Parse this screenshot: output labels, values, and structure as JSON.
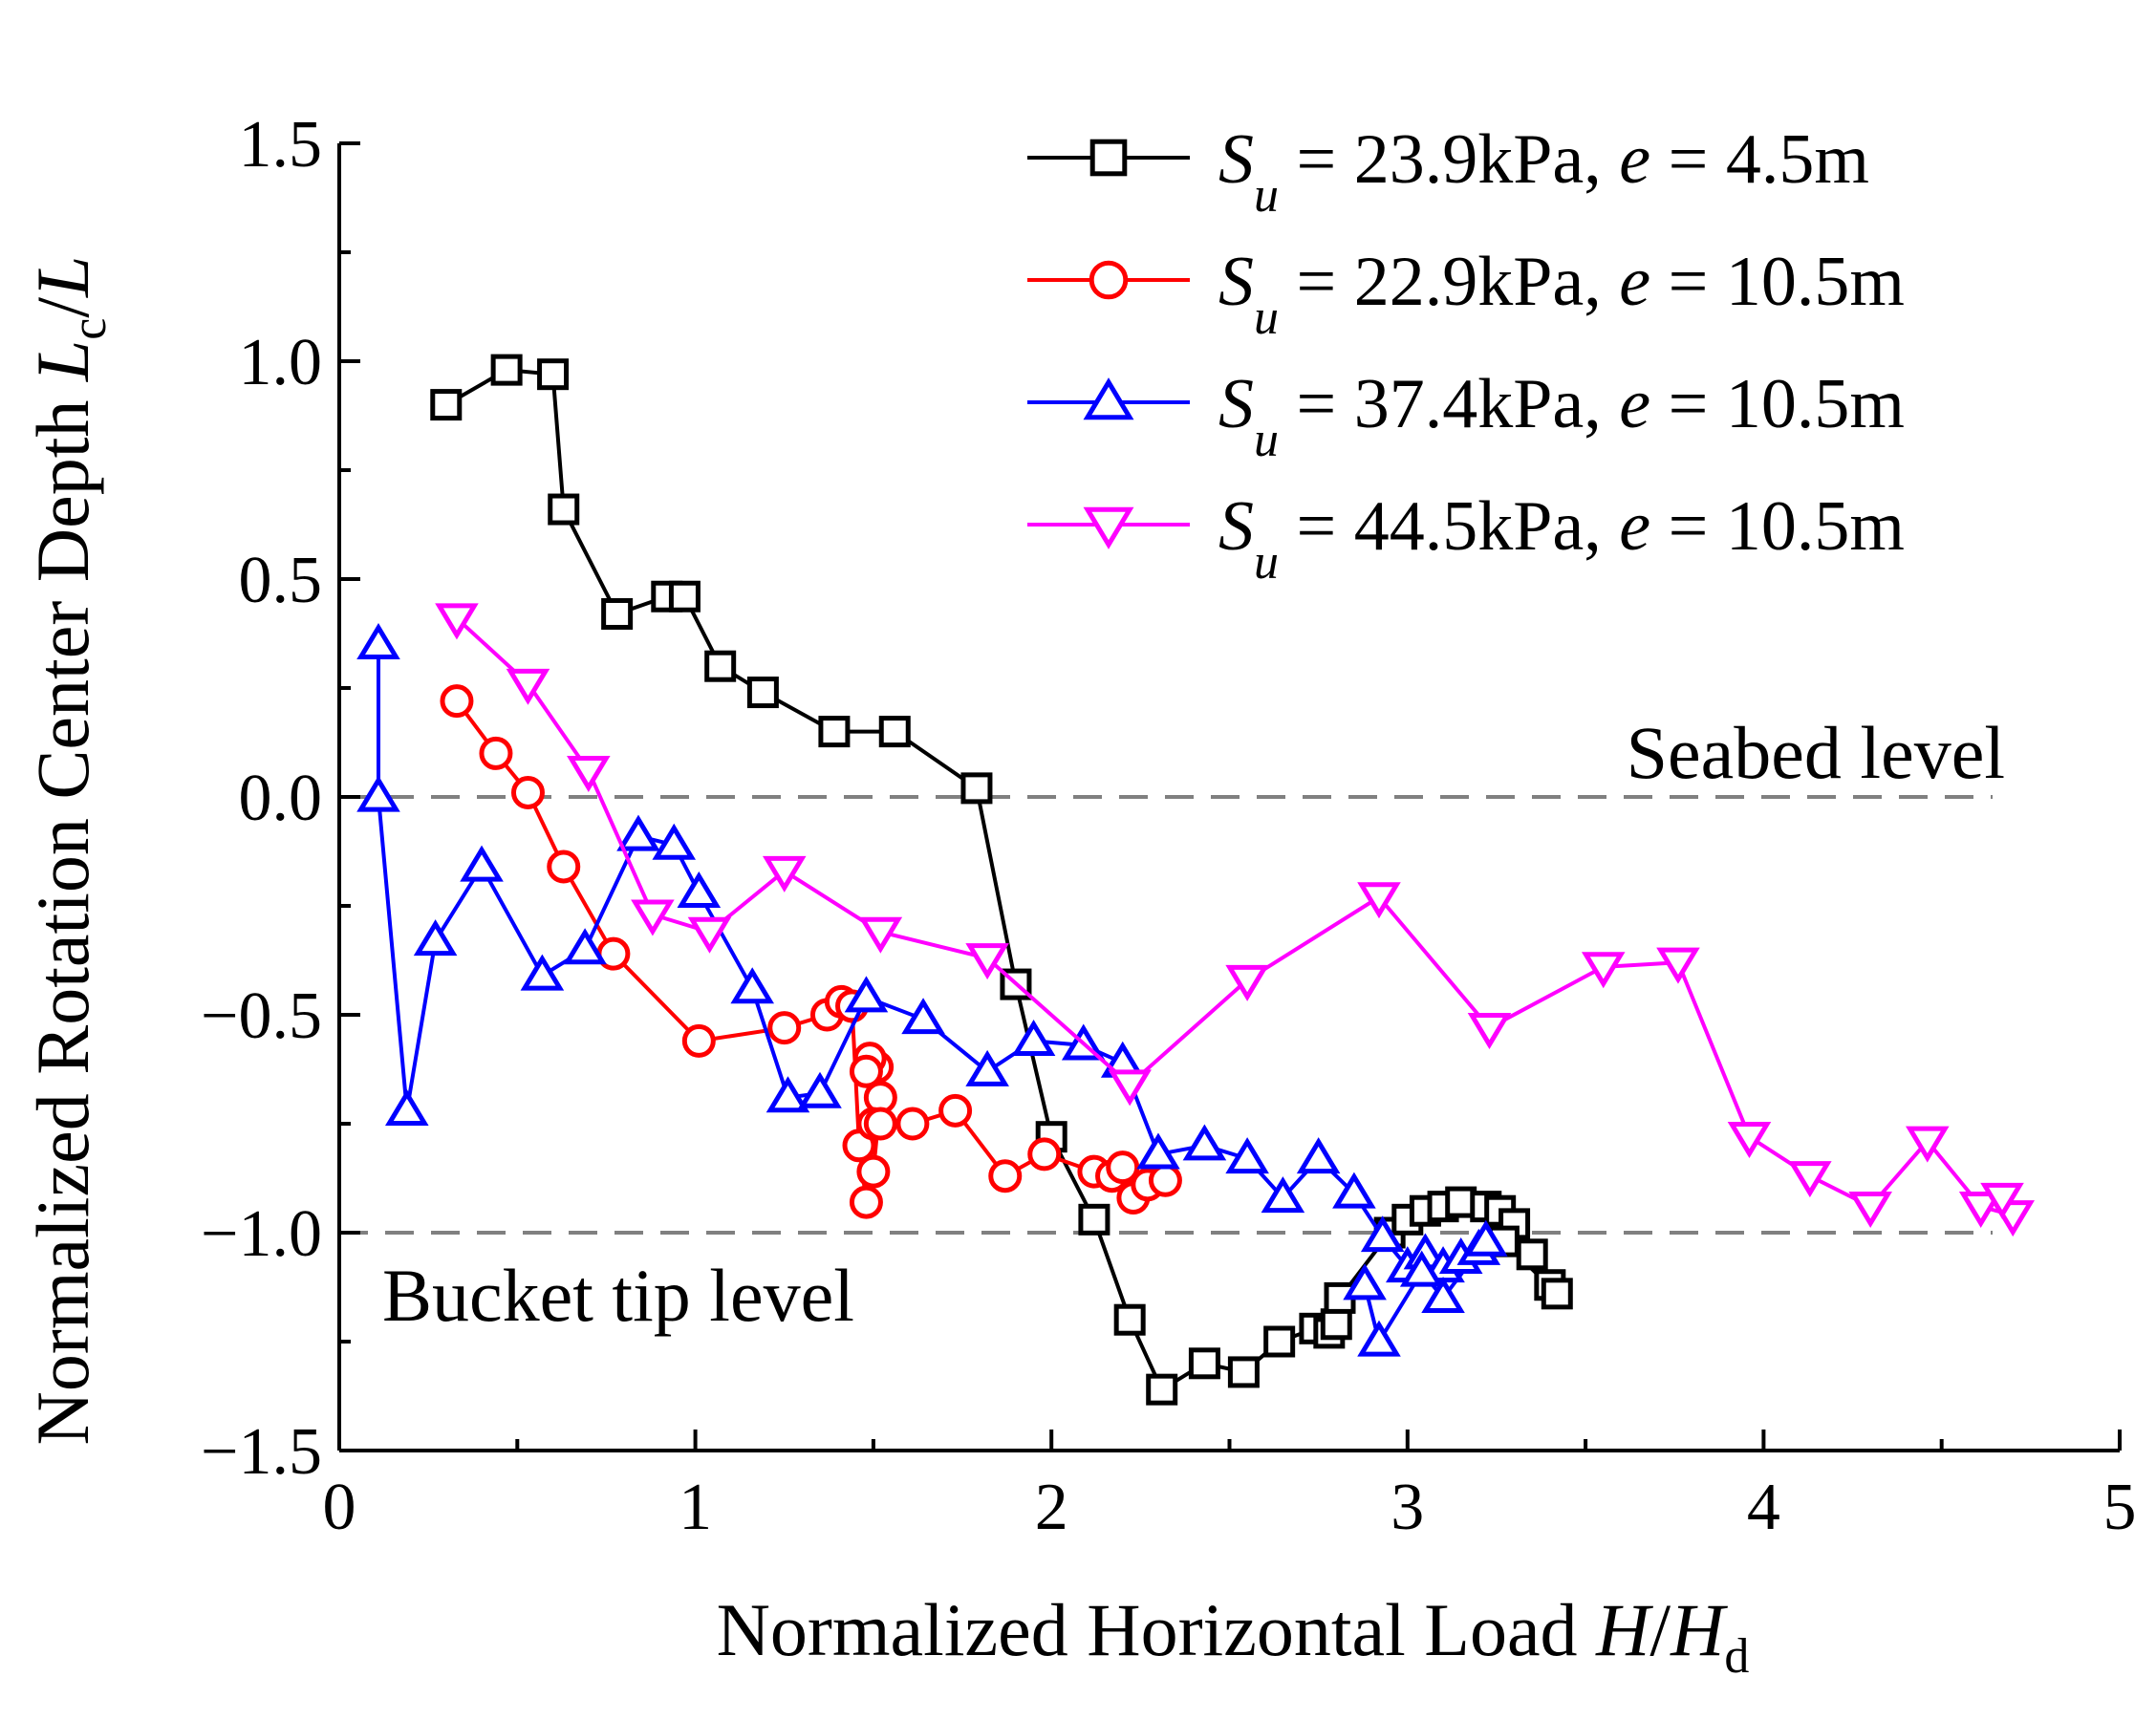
{
  "chart_data": {
    "type": "line",
    "title": "",
    "xlabel": {
      "text": "Normalized Horizontal Load ",
      "var": "H",
      "slash": "/",
      "var2": "H",
      "sub": "d"
    },
    "ylabel": {
      "text": "Normalized Rotation Center Depth  ",
      "var": "L",
      "sub": "c",
      "slash": "/",
      "var2": "L"
    },
    "xlim": [
      0,
      5
    ],
    "ylim": [
      -1.5,
      1.5
    ],
    "xticks": [
      0,
      1,
      2,
      3,
      4,
      5
    ],
    "yticks": [
      1.5,
      1.0,
      0.5,
      0.0,
      -0.5,
      -1.0,
      -1.5
    ],
    "xtick_labels": [
      "0",
      "1",
      "2",
      "3",
      "4",
      "5"
    ],
    "ytick_labels": [
      "1.5",
      "1.0",
      "0.5",
      "0.0",
      "−0.5",
      "−1.0",
      "−1.5"
    ],
    "reference_lines": [
      {
        "y": 0.0,
        "label": "Seabed level",
        "color": "#808080"
      },
      {
        "y": -1.0,
        "label": "Bucket tip level",
        "color": "#808080"
      }
    ],
    "legend_position": "top-right",
    "series": [
      {
        "name": "Su = 23.9kPa, e = 4.5m",
        "legend": {
          "s": "S",
          "sub": "u",
          "mid": " = 23.9kPa, ",
          "e": "e",
          "rest": " = 4.5m"
        },
        "color": "#000000",
        "marker": "square",
        "x": [
          0.3,
          0.47,
          0.6,
          0.63,
          0.78,
          0.92,
          0.97,
          1.07,
          1.19,
          1.39,
          1.56,
          1.79,
          1.9,
          2.0,
          2.12,
          2.22,
          2.31,
          2.43,
          2.54,
          2.64,
          2.74,
          2.78,
          2.8,
          2.81,
          2.95,
          3.0,
          3.05,
          3.1,
          3.15,
          3.22,
          3.26,
          3.3,
          3.35,
          3.4,
          3.42,
          3.27
        ],
        "y": [
          0.9,
          0.98,
          0.97,
          0.66,
          0.42,
          0.46,
          0.46,
          0.3,
          0.24,
          0.15,
          0.15,
          0.02,
          -0.43,
          -0.78,
          -0.97,
          -1.2,
          -1.36,
          -1.3,
          -1.32,
          -1.25,
          -1.22,
          -1.23,
          -1.21,
          -1.15,
          -1.0,
          -0.97,
          -0.95,
          -0.94,
          -0.93,
          -0.94,
          -0.95,
          -0.98,
          -1.05,
          -1.12,
          -1.14,
          -1.02
        ]
      },
      {
        "name": "Su = 22.9kPa, e = 10.5m",
        "legend": {
          "s": "S",
          "sub": "u",
          "mid": " = 22.9kPa, ",
          "e": "e",
          "rest": " = 10.5m"
        },
        "color": "#ff0000",
        "marker": "circle",
        "x": [
          0.33,
          0.44,
          0.53,
          0.63,
          0.77,
          1.01,
          1.25,
          1.37,
          1.41,
          1.44,
          1.46,
          1.48,
          1.5,
          1.52,
          1.51,
          1.49,
          1.48,
          1.5,
          1.52,
          1.61,
          1.73,
          1.87,
          1.98,
          2.12,
          2.17,
          2.2,
          2.23,
          2.27,
          2.32
        ],
        "y": [
          0.22,
          0.1,
          0.01,
          -0.16,
          -0.36,
          -0.56,
          -0.53,
          -0.5,
          -0.47,
          -0.48,
          -0.8,
          -0.93,
          -0.86,
          -0.69,
          -0.62,
          -0.6,
          -0.63,
          -0.75,
          -0.75,
          -0.75,
          -0.72,
          -0.87,
          -0.82,
          -0.86,
          -0.87,
          -0.85,
          -0.92,
          -0.89,
          -0.88
        ]
      },
      {
        "name": "Su = 37.4kPa, e = 10.5m",
        "legend": {
          "s": "S",
          "sub": "u",
          "mid": " = 37.4kPa, ",
          "e": "e",
          "rest": " = 10.5m"
        },
        "color": "#0000ff",
        "marker": "triangle-up",
        "x": [
          0.11,
          0.11,
          0.19,
          0.27,
          0.4,
          0.57,
          0.69,
          0.84,
          0.94,
          1.01,
          1.16,
          1.26,
          1.35,
          1.48,
          1.64,
          1.82,
          1.95,
          2.09,
          2.2,
          2.3,
          2.43,
          2.55,
          2.65,
          2.75,
          2.85,
          2.93,
          3.0,
          3.05,
          3.1,
          3.15,
          3.2,
          3.22,
          3.1,
          3.04,
          2.92,
          2.88
        ],
        "y": [
          0.35,
          0.0,
          -0.72,
          -0.33,
          -0.16,
          -0.41,
          -0.35,
          -0.09,
          -0.11,
          -0.22,
          -0.44,
          -0.69,
          -0.68,
          -0.46,
          -0.51,
          -0.63,
          -0.56,
          -0.57,
          -0.61,
          -0.82,
          -0.8,
          -0.83,
          -0.92,
          -0.83,
          -0.91,
          -1.01,
          -1.08,
          -1.05,
          -1.08,
          -1.06,
          -1.04,
          -1.02,
          -1.15,
          -1.09,
          -1.25,
          -1.12
        ]
      },
      {
        "name": "Su = 44.5kPa, e = 10.5m",
        "legend": {
          "s": "S",
          "sub": "u",
          "mid": " = 44.5kPa, ",
          "e": "e",
          "rest": " = 10.5m"
        },
        "color": "#ff00ff",
        "marker": "triangle-down",
        "x": [
          0.33,
          0.53,
          0.7,
          0.88,
          1.04,
          1.25,
          1.52,
          1.82,
          2.22,
          2.55,
          2.92,
          3.23,
          3.55,
          3.76,
          3.96,
          4.13,
          4.3,
          4.46,
          4.61,
          4.7,
          4.67
        ],
        "y": [
          0.41,
          0.26,
          0.06,
          -0.27,
          -0.31,
          -0.17,
          -0.31,
          -0.37,
          -0.66,
          -0.42,
          -0.23,
          -0.53,
          -0.39,
          -0.38,
          -0.78,
          -0.87,
          -0.94,
          -0.79,
          -0.94,
          -0.96,
          -0.92
        ]
      }
    ]
  }
}
